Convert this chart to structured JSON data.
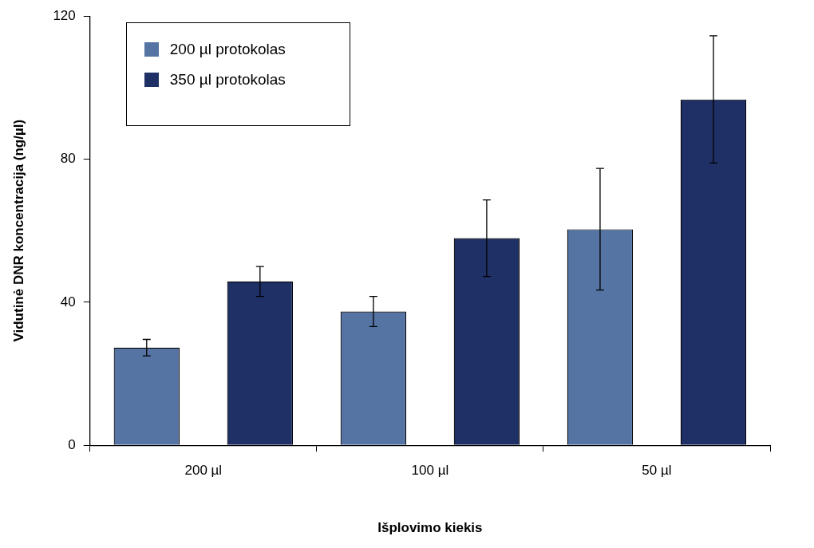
{
  "chart_data": {
    "type": "bar",
    "xlabel": "Išplovimo kiekis",
    "ylabel": "Vidutinė DNR koncentracija (ng/µl)",
    "categories": [
      "200 µl",
      "100 µl",
      "50 µl"
    ],
    "series": [
      {
        "name": "200 µl protokolas",
        "color": "#5573a3",
        "values": [
          27.3,
          37.4,
          60.4
        ],
        "errors": [
          2.3,
          4.2,
          17
        ]
      },
      {
        "name": "350 µl protokolas",
        "color": "#1f3066",
        "values": [
          45.8,
          57.9,
          96.7
        ],
        "errors": [
          4.2,
          10.7,
          17.8
        ]
      }
    ],
    "ylim": [
      0,
      120
    ],
    "yticks": [
      0,
      40,
      80,
      120
    ],
    "grid": false,
    "legend": "top left"
  }
}
